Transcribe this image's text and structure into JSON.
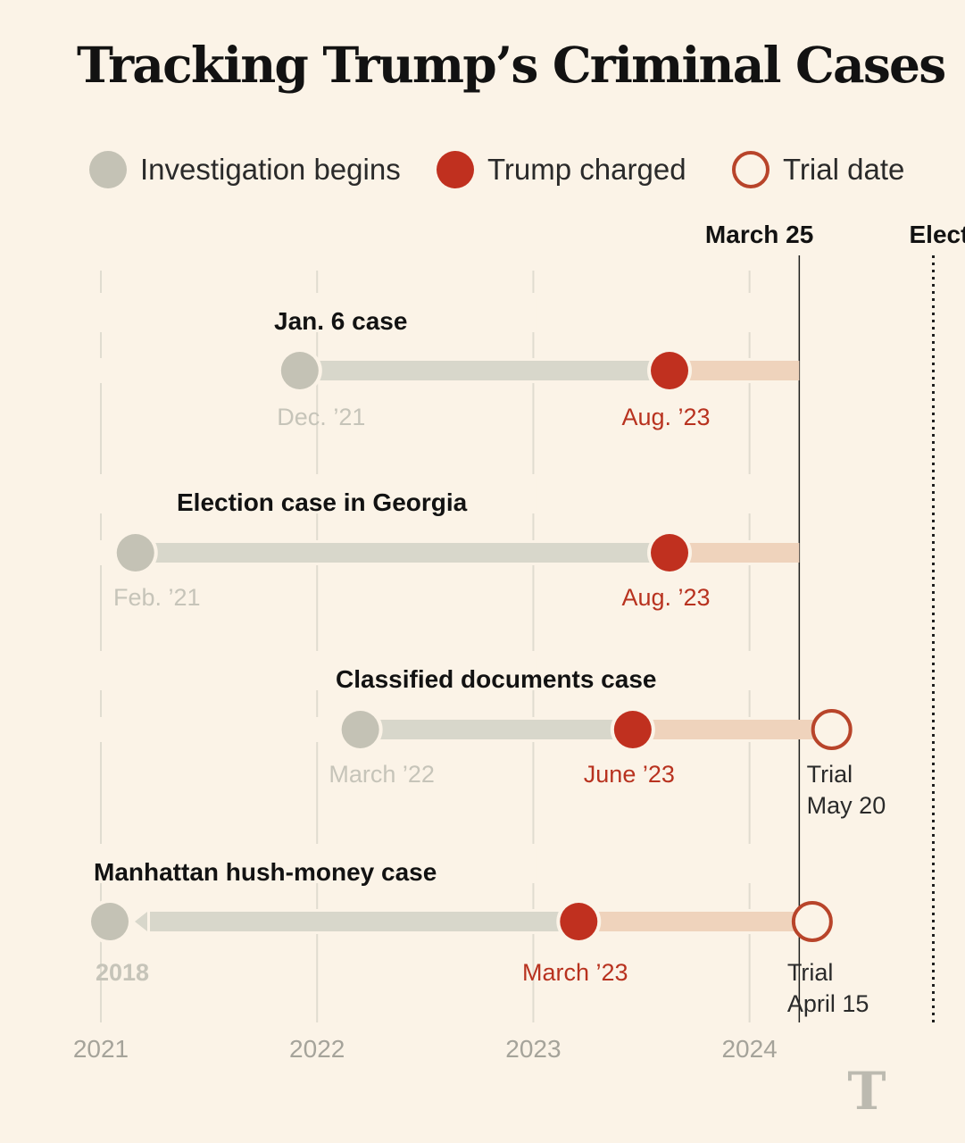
{
  "header": {
    "title": "Tracking Trump’s Criminal Cases"
  },
  "colors": {
    "background": "#fbf3e7",
    "investigation": "#c4c2b5",
    "investigation_bar": "#d8d7cb",
    "charged": "#c0301f",
    "charged_bar": "#efd3bc",
    "trial": "#b8442a",
    "year_text": "#a5a39a",
    "grid": "#e0dcd0"
  },
  "legend": [
    {
      "label": "Investigation begins",
      "marker": "investigation"
    },
    {
      "label": "Trump charged",
      "marker": "charged"
    },
    {
      "label": "Trial date",
      "marker": "trial"
    }
  ],
  "chart_data": {
    "type": "timeline",
    "x_axis": {
      "min": 2020.55,
      "max": 2024.98,
      "ticks": [
        {
          "value": 2021,
          "label": "2021"
        },
        {
          "value": 2022,
          "label": "2022"
        },
        {
          "value": 2023,
          "label": "2023"
        },
        {
          "value": 2024,
          "label": "2024"
        }
      ]
    },
    "reference_lines": [
      {
        "name": "march-25",
        "value": 2024.23,
        "label": "March 25",
        "style": "solid"
      },
      {
        "name": "election-day",
        "value": 2024.85,
        "label": "Election Day",
        "style": "dotted"
      }
    ],
    "cases": [
      {
        "name": "Jan. 6 case",
        "investigation": {
          "value": 2021.92,
          "label": "Dec. ’21"
        },
        "charged": {
          "value": 2023.63,
          "label": "Aug. ’23"
        },
        "trial": null
      },
      {
        "name": "Election case in Georgia",
        "investigation": {
          "value": 2021.16,
          "label": "Feb. ’21"
        },
        "charged": {
          "value": 2023.63,
          "label": "Aug. ’23"
        },
        "trial": null
      },
      {
        "name": "Classified documents case",
        "investigation": {
          "value": 2022.2,
          "label": "March ’22"
        },
        "charged": {
          "value": 2023.46,
          "label": "June ’23"
        },
        "trial": {
          "value": 2024.38,
          "label_line1": "Trial",
          "label_line2": "May 20"
        }
      },
      {
        "name": "Manhattan hush-money case",
        "investigation": {
          "value": 2018,
          "label": "2018",
          "off_scale": true
        },
        "charged": {
          "value": 2023.21,
          "label": "March ’23"
        },
        "trial": {
          "value": 2024.29,
          "label_line1": "Trial",
          "label_line2": "April 15"
        }
      }
    ]
  }
}
